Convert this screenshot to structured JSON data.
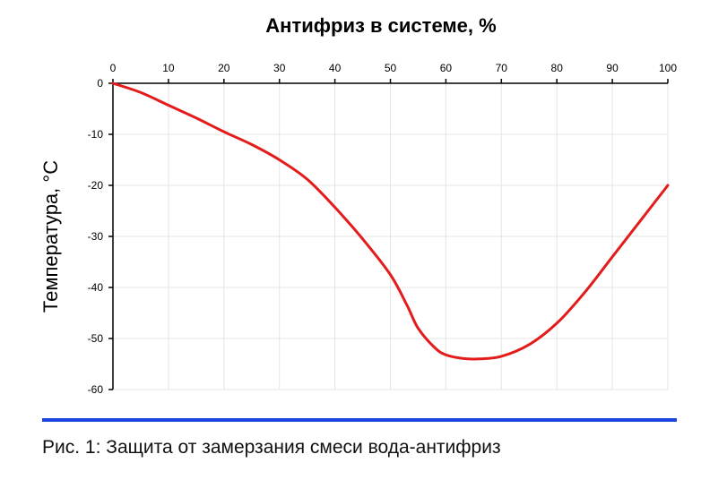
{
  "caption": "Рис. 1: Защита от замерзания смеси вода-антифриз",
  "colors": {
    "line": "#e31b1b",
    "rule": "#1d44e0",
    "grid": "#e4e4e4",
    "axis": "#000000"
  },
  "chart_data": {
    "type": "line",
    "title": "Антифриз в системе, %",
    "xlabel": "",
    "ylabel": "Температура, °C",
    "xlim": [
      0,
      100
    ],
    "ylim": [
      -60,
      0
    ],
    "x_axis_position": "top",
    "grid": true,
    "x_ticks": [
      0,
      10,
      20,
      30,
      40,
      50,
      60,
      70,
      80,
      90,
      100
    ],
    "y_ticks": [
      0,
      -10,
      -20,
      -30,
      -40,
      -50,
      -60
    ],
    "x": [
      0,
      5,
      10,
      15,
      20,
      25,
      30,
      35,
      40,
      45,
      50,
      53,
      55,
      58,
      60,
      63,
      66,
      70,
      75,
      80,
      85,
      90,
      95,
      100
    ],
    "y": [
      0,
      -1.8,
      -4.3,
      -6.8,
      -9.5,
      -12,
      -15,
      -18.8,
      -24.3,
      -30.5,
      -37.5,
      -43.5,
      -48,
      -51.8,
      -53.2,
      -53.9,
      -54,
      -53.5,
      -51.2,
      -47,
      -41,
      -34,
      -27,
      -20
    ]
  }
}
